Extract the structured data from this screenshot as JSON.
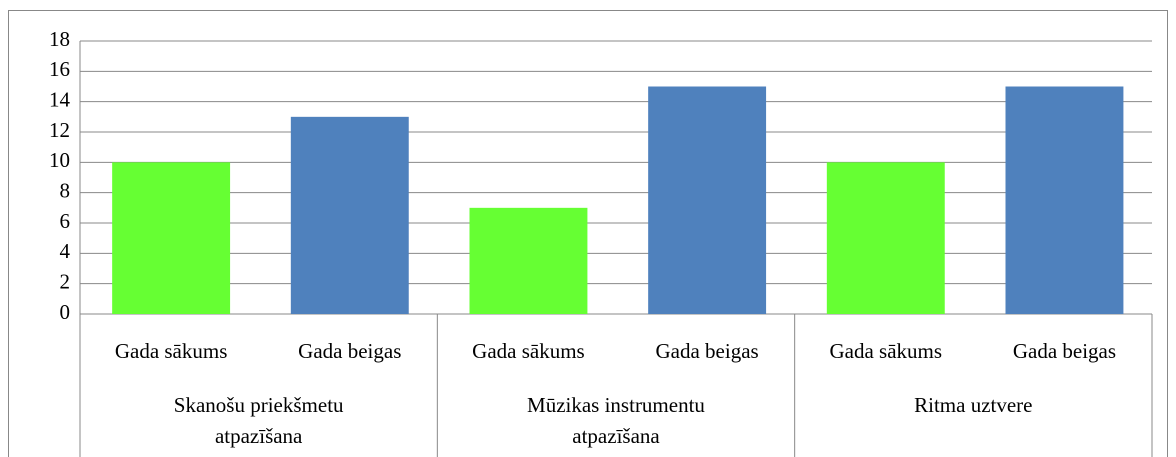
{
  "chart_data": {
    "type": "bar",
    "categories": [
      "Skanošu priekšmetu atpazīšana",
      "Mūzikas instrumentu atpazīšana",
      "Ritma uztvere"
    ],
    "series": [
      {
        "name": "Gada sākums",
        "color": "#66ff33",
        "values": [
          10,
          7,
          10
        ]
      },
      {
        "name": "Gada beigas",
        "color": "#4f81bd",
        "values": [
          13,
          15,
          15
        ]
      }
    ],
    "ylim": [
      0,
      18
    ],
    "yticks": [
      0,
      2,
      4,
      6,
      8,
      10,
      12,
      14,
      16,
      18
    ],
    "grid": true
  }
}
